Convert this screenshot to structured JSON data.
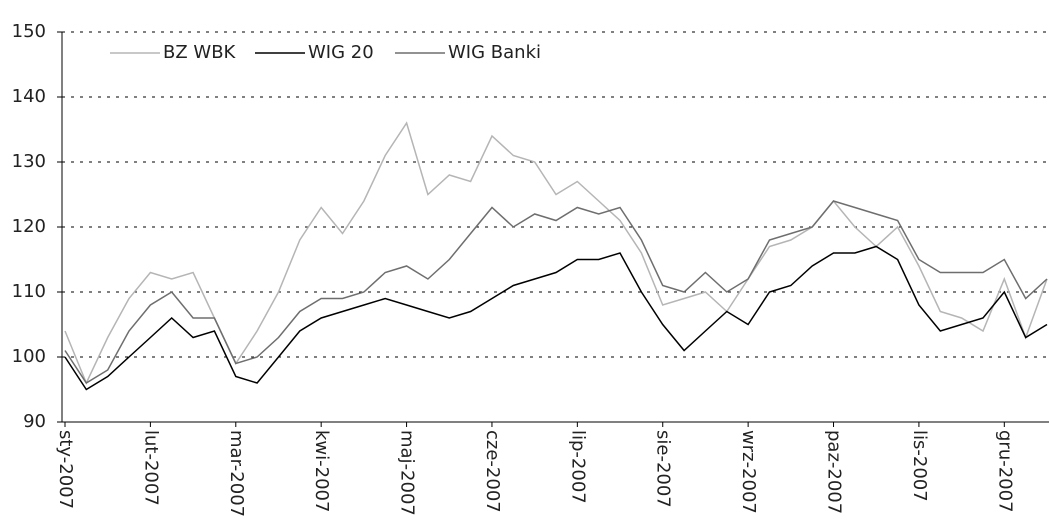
{
  "chart_data": {
    "type": "line",
    "categories": [
      "sty-2007",
      null,
      null,
      null,
      "lut-2007",
      null,
      null,
      null,
      "mar-2007",
      null,
      null,
      null,
      "kwi-2007",
      null,
      null,
      null,
      "maj-2007",
      null,
      null,
      null,
      "cze-2007",
      null,
      null,
      null,
      "lip-2007",
      null,
      null,
      null,
      "sie-2007",
      null,
      null,
      null,
      "wrz-2007",
      null,
      null,
      null,
      "paz-2007",
      null,
      null,
      null,
      "lis-2007",
      null,
      null,
      null,
      "gru-2007",
      null,
      null
    ],
    "series": [
      {
        "name": "BZ WBK",
        "color": "#b5b5b5",
        "values": [
          104,
          96,
          103,
          109,
          113,
          112,
          113,
          106,
          99,
          104,
          110,
          118,
          123,
          119,
          124,
          131,
          136,
          125,
          128,
          127,
          134,
          131,
          130,
          125,
          127,
          124,
          121,
          116,
          108,
          109,
          110,
          107,
          112,
          117,
          118,
          120,
          124,
          120,
          117,
          120,
          114,
          107,
          106,
          104,
          112,
          103,
          112
        ]
      },
      {
        "name": "WIG 20",
        "color": "#000000",
        "values": [
          100,
          95,
          97,
          100,
          103,
          106,
          103,
          104,
          97,
          96,
          100,
          104,
          106,
          107,
          108,
          109,
          108,
          107,
          106,
          107,
          109,
          111,
          112,
          113,
          115,
          115,
          116,
          110,
          105,
          101,
          104,
          107,
          105,
          110,
          111,
          114,
          116,
          116,
          117,
          115,
          108,
          104,
          105,
          106,
          110,
          103,
          105
        ]
      },
      {
        "name": "WIG Banki",
        "color": "#6e6e6e",
        "values": [
          101,
          96,
          98,
          104,
          108,
          110,
          106,
          106,
          99,
          100,
          103,
          107,
          109,
          109,
          110,
          113,
          114,
          112,
          115,
          119,
          123,
          120,
          122,
          121,
          123,
          122,
          123,
          118,
          111,
          110,
          113,
          110,
          112,
          118,
          119,
          120,
          124,
          123,
          122,
          121,
          115,
          113,
          113,
          113,
          115,
          109,
          112
        ]
      }
    ],
    "ylim": [
      90,
      150
    ],
    "yticks": [
      90,
      100,
      110,
      120,
      130,
      140,
      150
    ],
    "grid": true,
    "legend": "top-left"
  }
}
